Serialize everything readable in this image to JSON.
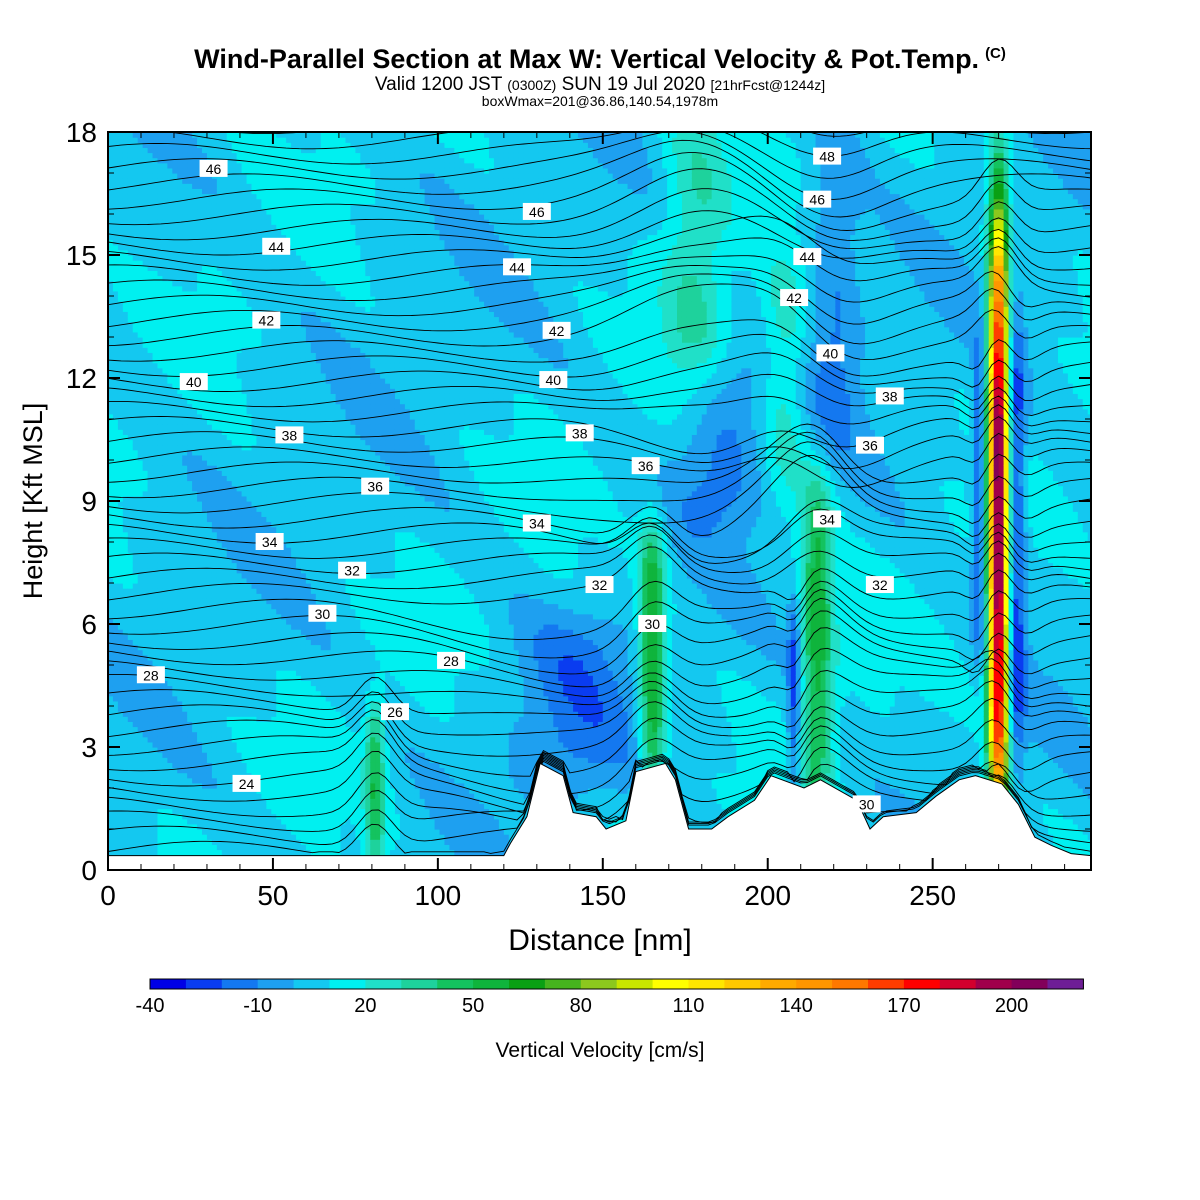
{
  "title": "Wind-Parallel Section at Max W: Vertical Velocity & Pot.Temp.",
  "title_mark": "(C)",
  "valid_prefix": "Valid 1200 JST",
  "valid_utc": "(0300Z)",
  "valid_date": "SUN 19 Jul 2020",
  "valid_fcst": "[21hrFcst@1244z]",
  "boxline": "boxWmax=201@36.86,140.54,1978m",
  "chart_data": {
    "type": "heatmap",
    "xlabel": "Distance [nm]",
    "ylabel": "Height [Kft MSL]",
    "xlim": [
      0,
      298
    ],
    "ylim": [
      0,
      18
    ],
    "xticks": [
      0,
      50,
      100,
      150,
      200,
      250
    ],
    "yticks": [
      0,
      3,
      6,
      9,
      12,
      15,
      18
    ],
    "grid": false,
    "colorbar": {
      "label": "Vertical Velocity [cm/s]",
      "tick_labels": [
        "-40",
        "-10",
        "20",
        "50",
        "80",
        "110",
        "140",
        "170",
        "200"
      ],
      "min": -40,
      "max": 210,
      "step": 10,
      "colors": [
        "#0000e6",
        "#0a3cf0",
        "#1478f0",
        "#1ea0f0",
        "#14c8f0",
        "#00f0f0",
        "#20e0c8",
        "#1ed29c",
        "#14c35f",
        "#0fb43c",
        "#0aa014",
        "#46b41e",
        "#8cc81e",
        "#c8e600",
        "#ffff00",
        "#ffe600",
        "#ffc800",
        "#ffaa00",
        "#ff9600",
        "#ff7800",
        "#ff3c00",
        "#ff0000",
        "#d2002d",
        "#a0004b",
        "#82005a",
        "#6e1e96"
      ]
    },
    "theta_labels": [
      {
        "v": "46",
        "x": 32,
        "y": 17.1
      },
      {
        "v": "44",
        "x": 51,
        "y": 15.2
      },
      {
        "v": "42",
        "x": 48,
        "y": 13.4
      },
      {
        "v": "40",
        "x": 26,
        "y": 11.9
      },
      {
        "v": "38",
        "x": 55,
        "y": 10.6
      },
      {
        "v": "36",
        "x": 81,
        "y": 9.35
      },
      {
        "v": "34",
        "x": 49,
        "y": 8.0
      },
      {
        "v": "32",
        "x": 74,
        "y": 7.3
      },
      {
        "v": "30",
        "x": 65,
        "y": 6.25
      },
      {
        "v": "28",
        "x": 13,
        "y": 4.75
      },
      {
        "v": "26",
        "x": 87,
        "y": 3.85
      },
      {
        "v": "24",
        "x": 42,
        "y": 2.1
      },
      {
        "v": "46",
        "x": 130,
        "y": 16.05
      },
      {
        "v": "44",
        "x": 124,
        "y": 14.7
      },
      {
        "v": "42",
        "x": 136,
        "y": 13.15
      },
      {
        "v": "40",
        "x": 135,
        "y": 11.95
      },
      {
        "v": "38",
        "x": 143,
        "y": 10.65
      },
      {
        "v": "36",
        "x": 163,
        "y": 9.85
      },
      {
        "v": "34",
        "x": 130,
        "y": 8.45
      },
      {
        "v": "32",
        "x": 149,
        "y": 6.95
      },
      {
        "v": "30",
        "x": 165,
        "y": 6.0
      },
      {
        "v": "28",
        "x": 104,
        "y": 5.1
      },
      {
        "v": "48",
        "x": 218,
        "y": 17.4
      },
      {
        "v": "46",
        "x": 215,
        "y": 16.35
      },
      {
        "v": "44",
        "x": 212,
        "y": 14.95
      },
      {
        "v": "42",
        "x": 208,
        "y": 13.95
      },
      {
        "v": "40",
        "x": 219,
        "y": 12.6
      },
      {
        "v": "38",
        "x": 237,
        "y": 11.55
      },
      {
        "v": "36",
        "x": 231,
        "y": 10.35
      },
      {
        "v": "34",
        "x": 218,
        "y": 8.55
      },
      {
        "v": "32",
        "x": 234,
        "y": 6.95
      },
      {
        "v": "30",
        "x": 230,
        "y": 1.6
      }
    ],
    "terrain": [
      [
        0,
        0.35
      ],
      [
        120,
        0.35
      ],
      [
        122,
        0.65
      ],
      [
        127,
        1.3
      ],
      [
        131,
        2.6
      ],
      [
        138,
        2.3
      ],
      [
        141,
        1.4
      ],
      [
        148,
        1.3
      ],
      [
        151,
        1.0
      ],
      [
        157,
        1.2
      ],
      [
        160,
        2.4
      ],
      [
        169,
        2.6
      ],
      [
        172,
        2.2
      ],
      [
        176,
        1.0
      ],
      [
        183,
        1.0
      ],
      [
        188,
        1.3
      ],
      [
        196,
        1.7
      ],
      [
        201,
        2.3
      ],
      [
        211,
        2.0
      ],
      [
        216,
        2.2
      ],
      [
        227,
        1.7
      ],
      [
        231,
        1.0
      ],
      [
        235,
        1.3
      ],
      [
        245,
        1.4
      ],
      [
        251,
        1.8
      ],
      [
        258,
        2.2
      ],
      [
        263,
        2.3
      ],
      [
        271,
        2.1
      ],
      [
        276,
        1.6
      ],
      [
        281,
        0.8
      ],
      [
        286,
        0.6
      ],
      [
        292,
        0.4
      ],
      [
        298,
        0.35
      ]
    ],
    "updrafts": [
      {
        "x": 270,
        "base": 1.5,
        "top": 15.5,
        "peak": 200,
        "width": 3
      },
      {
        "x": 165,
        "base": 2.5,
        "top": 7.8,
        "peak": 55,
        "width": 4
      },
      {
        "x": 215,
        "base": 2.5,
        "top": 9.0,
        "peak": 48,
        "width": 5
      },
      {
        "x": 81,
        "base": 0.8,
        "top": 3.5,
        "peak": 40,
        "width": 3
      },
      {
        "x": 178,
        "base": 12.0,
        "top": 18,
        "peak": 24,
        "width": 10
      },
      {
        "x": 205,
        "base": 9.5,
        "top": 14,
        "peak": 22,
        "width": 7
      }
    ],
    "downdrafts": [
      {
        "x": 275,
        "base": 3.0,
        "top": 13.0,
        "peak": -38,
        "width": 3
      },
      {
        "x": 264,
        "base": 6.0,
        "top": 12.0,
        "peak": -30,
        "width": 2
      },
      {
        "x": 208,
        "base": 2.5,
        "top": 6.0,
        "peak": -32,
        "width": 2
      },
      {
        "x": 186,
        "base": 9.0,
        "top": 12.0,
        "peak": -20,
        "width": 14
      },
      {
        "x": 141,
        "base": 2.5,
        "top": 5.5,
        "peak": -18,
        "width": 18
      },
      {
        "x": 220,
        "base": 11.0,
        "top": 17.5,
        "peak": -18,
        "width": 8
      }
    ]
  }
}
